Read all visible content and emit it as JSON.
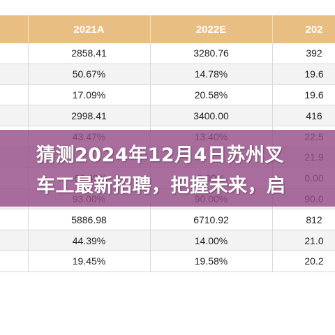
{
  "table": {
    "headers": [
      "",
      "2021A",
      "2022E",
      "202"
    ],
    "rows": [
      [
        "",
        "2858.41",
        "3280.76",
        "392"
      ],
      [
        "",
        "50.67%",
        "14.78%",
        "19.6"
      ],
      [
        "",
        "17.09%",
        "20.58%",
        "19.6"
      ],
      [
        "",
        "2998.41",
        "3400.00",
        "416"
      ],
      [
        "",
        "43.47%",
        "13.40%",
        "22.5"
      ],
      [
        "",
        "",
        "",
        "21.9"
      ],
      [
        "",
        "-66.49%",
        "0.00%",
        "0.00"
      ],
      [
        "",
        "93.00%",
        "90.00%",
        "90.0"
      ],
      [
        "",
        "5886.98",
        "6710.92",
        "812"
      ],
      [
        "",
        "44.39%",
        "14.00%",
        "21.0"
      ],
      [
        "",
        "19.45%",
        "19.58%",
        "20.2"
      ]
    ]
  },
  "banner": {
    "line1": "猜测2024年12月4日苏州叉",
    "line2": "车工最新招聘，把握未来，启",
    "color": "#964e87"
  }
}
